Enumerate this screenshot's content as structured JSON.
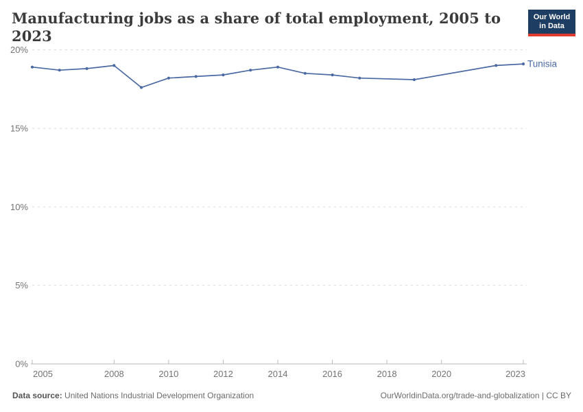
{
  "header": {
    "title": "Manufacturing jobs as a share of total employment, 2005 to 2023",
    "logo": {
      "line1": "Our World",
      "line2": "in Data",
      "bg_color": "#1d3d63",
      "accent_color": "#e0392f"
    }
  },
  "chart_data": {
    "type": "line",
    "title": "Manufacturing jobs as a share of total employment, 2005 to 2023",
    "xlabel": "",
    "ylabel": "",
    "xlim": [
      2005,
      2023
    ],
    "ylim": [
      0,
      20
    ],
    "grid": "horizontal-dashed",
    "legend_position": "end-of-line",
    "x_ticks": [
      "2005",
      "2008",
      "2010",
      "2012",
      "2014",
      "2016",
      "2018",
      "2020",
      "2023"
    ],
    "y_ticks": [
      {
        "value": 0,
        "label": "0%"
      },
      {
        "value": 5,
        "label": "5%"
      },
      {
        "value": 10,
        "label": "10%"
      },
      {
        "value": 15,
        "label": "15%"
      },
      {
        "value": 20,
        "label": "20%"
      }
    ],
    "series": [
      {
        "name": "Tunisia",
        "color": "#4a69a3",
        "points": [
          {
            "year": 2005,
            "value": 18.9
          },
          {
            "year": 2006,
            "value": 18.7
          },
          {
            "year": 2007,
            "value": 18.8
          },
          {
            "year": 2008,
            "value": 19.0
          },
          {
            "year": 2009,
            "value": 17.6
          },
          {
            "year": 2010,
            "value": 18.2
          },
          {
            "year": 2011,
            "value": 18.3
          },
          {
            "year": 2012,
            "value": 18.4
          },
          {
            "year": 2013,
            "value": 18.7
          },
          {
            "year": 2014,
            "value": 18.9
          },
          {
            "year": 2015,
            "value": 18.5
          },
          {
            "year": 2016,
            "value": 18.4
          },
          {
            "year": 2017,
            "value": 18.2
          },
          {
            "year": 2019,
            "value": 18.1
          },
          {
            "year": 2022,
            "value": 19.0
          },
          {
            "year": 2023,
            "value": 19.1
          }
        ]
      }
    ]
  },
  "footer": {
    "source_label": "Data source:",
    "source": "United Nations Industrial Development Organization",
    "attribution": "OurWorldinData.org/trade-and-globalization | CC BY"
  }
}
